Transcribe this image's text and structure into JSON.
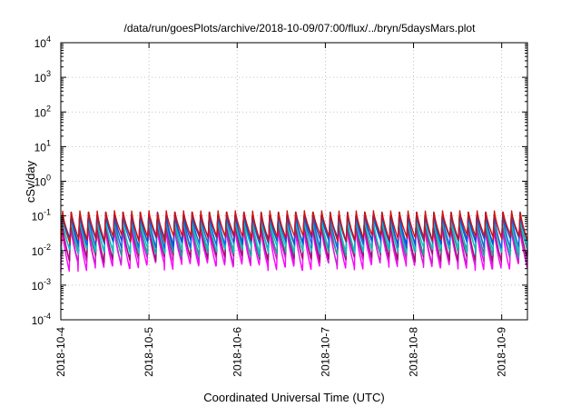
{
  "chart_data": {
    "type": "line",
    "title": "/data/run/goesPlots/archive/2018-10-09/07:00/flux/../bryn/5daysMars.plot",
    "xlabel": "Coordinated Universal Time (UTC)",
    "ylabel": "cSv/day",
    "y_scale": "log",
    "ylim": [
      0.0001,
      10000
    ],
    "y_ticks": [
      {
        "base": "10",
        "exp": "-4"
      },
      {
        "base": "10",
        "exp": "-3"
      },
      {
        "base": "10",
        "exp": "-2"
      },
      {
        "base": "10",
        "exp": "-1"
      },
      {
        "base": "10",
        "exp": "0"
      },
      {
        "base": "10",
        "exp": "1"
      },
      {
        "base": "10",
        "exp": "2"
      },
      {
        "base": "10",
        "exp": "3"
      },
      {
        "base": "10",
        "exp": "4"
      }
    ],
    "xlim": [
      "2018-10-04 00:00",
      "2018-10-09 07:00"
    ],
    "x_tick_labels": [
      "2018-10-4",
      "2018-10-5",
      "2018-10-6",
      "2018-10-7",
      "2018-10-8",
      "2018-10-9"
    ],
    "grid": true,
    "colors": {
      "series": [
        "#ff00ff",
        "#d020d0",
        "#a01070",
        "#20a0a0",
        "#10c0c0",
        "#2060e0",
        "#1050d0",
        "#d01010"
      ],
      "grid": "#b0b0b0",
      "axis": "#000000"
    },
    "period_hours": 2.35,
    "series": [
      {
        "peak": 0.06,
        "trough": 0.0032
      },
      {
        "peak": 0.07,
        "trough": 0.0045
      },
      {
        "peak": 0.075,
        "trough": 0.006
      },
      {
        "peak": 0.09,
        "trough": 0.008
      },
      {
        "peak": 0.1,
        "trough": 0.01
      },
      {
        "peak": 0.12,
        "trough": 0.014
      },
      {
        "peak": 0.13,
        "trough": 0.018
      },
      {
        "peak": 0.15,
        "trough": 0.021
      }
    ]
  }
}
